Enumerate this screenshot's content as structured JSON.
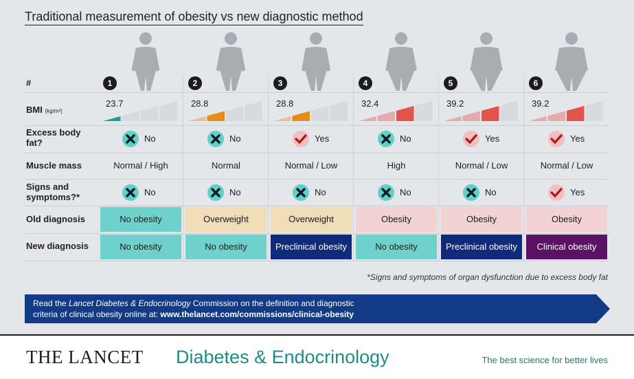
{
  "title": "Traditional measurement of obesity vs new diagnostic method",
  "row_labels": {
    "number": "#",
    "bmi": "BMI",
    "bmi_unit": "(kg/m²)",
    "excess_fat": "Excess body fat?",
    "muscle": "Muscle mass",
    "signs": "Signs and symptoms?*",
    "old_diag": "Old diagnosis",
    "new_diag": "New diagnosis"
  },
  "cases": [
    {
      "num": "1",
      "bmi": "23.7",
      "bmi_level": 1,
      "bmi_color": "#1a9e92",
      "fat": "No",
      "muscle": "Normal / High",
      "signs": "No",
      "old": "No obesity",
      "new": "No obesity"
    },
    {
      "num": "2",
      "bmi": "28.8",
      "bmi_level": 2,
      "bmi_color": "#e58b1a",
      "fat": "No",
      "muscle": "Normal",
      "signs": "No",
      "old": "Overweight",
      "new": "No obesity"
    },
    {
      "num": "3",
      "bmi": "28.8",
      "bmi_level": 2,
      "bmi_color": "#e58b1a",
      "fat": "Yes",
      "muscle": "Normal / Low",
      "signs": "No",
      "old": "Overweight",
      "new": "Preclinical obesity"
    },
    {
      "num": "4",
      "bmi": "32.4",
      "bmi_level": 3,
      "bmi_color": "#e4524e",
      "fat": "No",
      "muscle": "High",
      "signs": "No",
      "old": "Obesity",
      "new": "No obesity"
    },
    {
      "num": "5",
      "bmi": "39.2",
      "bmi_level": 3,
      "bmi_color": "#e4524e",
      "fat": "Yes",
      "muscle": "Normal / Low",
      "signs": "No",
      "old": "Obesity",
      "new": "Preclinical obesity"
    },
    {
      "num": "6",
      "bmi": "39.2",
      "bmi_level": 3,
      "bmi_color": "#e4524e",
      "fat": "Yes",
      "muscle": "Normal / Low",
      "signs": "Yes",
      "old": "Obesity",
      "new": "Clinical obesity"
    }
  ],
  "diag_colors": {
    "No obesity": {
      "bg": "#6fd1cc",
      "fg": "#1d1d1d"
    },
    "Overweight": {
      "bg": "#f0dcb6",
      "fg": "#1d1d1d"
    },
    "Obesity": {
      "bg": "#f2d2d3",
      "fg": "#1d1d1d"
    },
    "Preclinical obesity": {
      "bg": "#102a7c",
      "fg": "#ffffff"
    },
    "Clinical obesity": {
      "bg": "#5b1265",
      "fg": "#ffffff"
    }
  },
  "footnote": "*Signs and symptoms of organ dysfunction due to excess body fat",
  "banner": {
    "pre": "Read the ",
    "italic": "Lancet Diabetes & Endocrinology",
    "mid": " Commission on the definition and diagnostic",
    "line2_pre": "criteria of clinical obesity online at: ",
    "url": "www.thelancet.com/commissions/clinical-obesity",
    "color": "#133a87"
  },
  "publisher": "THE LANCET",
  "journal": "Diabetes & Endocrinology",
  "tagline": "The best science for better lives"
}
